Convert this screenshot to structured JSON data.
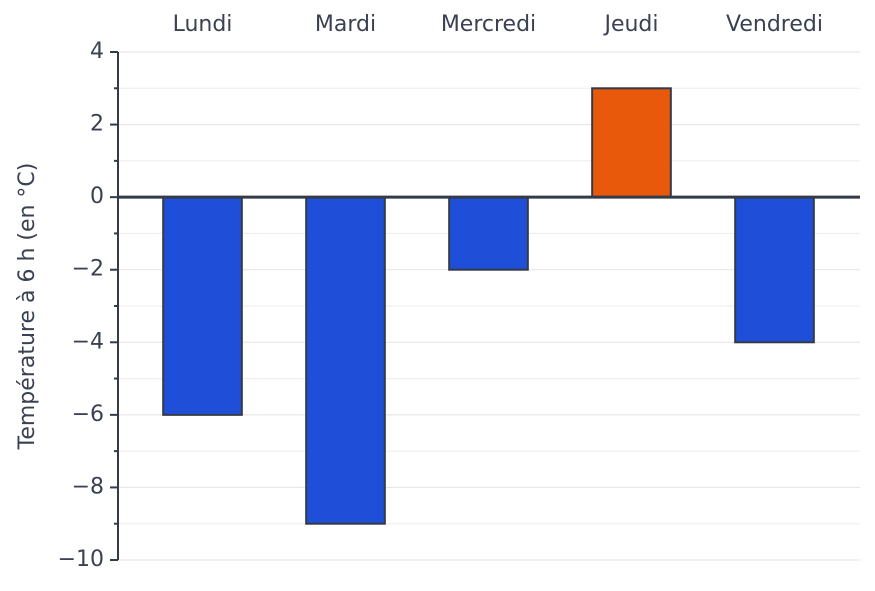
{
  "chart_data": {
    "type": "bar",
    "y_label": "Température à 6 h (en °C)",
    "categories": [
      "Lundi",
      "Mardi",
      "Mercredi",
      "Jeudi",
      "Vendredi"
    ],
    "values": [
      -6,
      -9,
      -2,
      3,
      -4
    ],
    "colors": [
      "#1f4fd8",
      "#1f4fd8",
      "#1f4fd8",
      "#e8590c",
      "#1f4fd8"
    ],
    "ylim": [
      -10,
      4
    ],
    "yticks": [
      {
        "value": -10,
        "label": "−10"
      },
      {
        "value": -8,
        "label": "−8"
      },
      {
        "value": -6,
        "label": "−6"
      },
      {
        "value": -4,
        "label": "−4"
      },
      {
        "value": -2,
        "label": "−2"
      },
      0,
      2,
      4
    ],
    "minor_yticks": [
      -9,
      -7,
      -5,
      -3,
      -1,
      1,
      3
    ],
    "grid": true,
    "category_axis": "top"
  }
}
